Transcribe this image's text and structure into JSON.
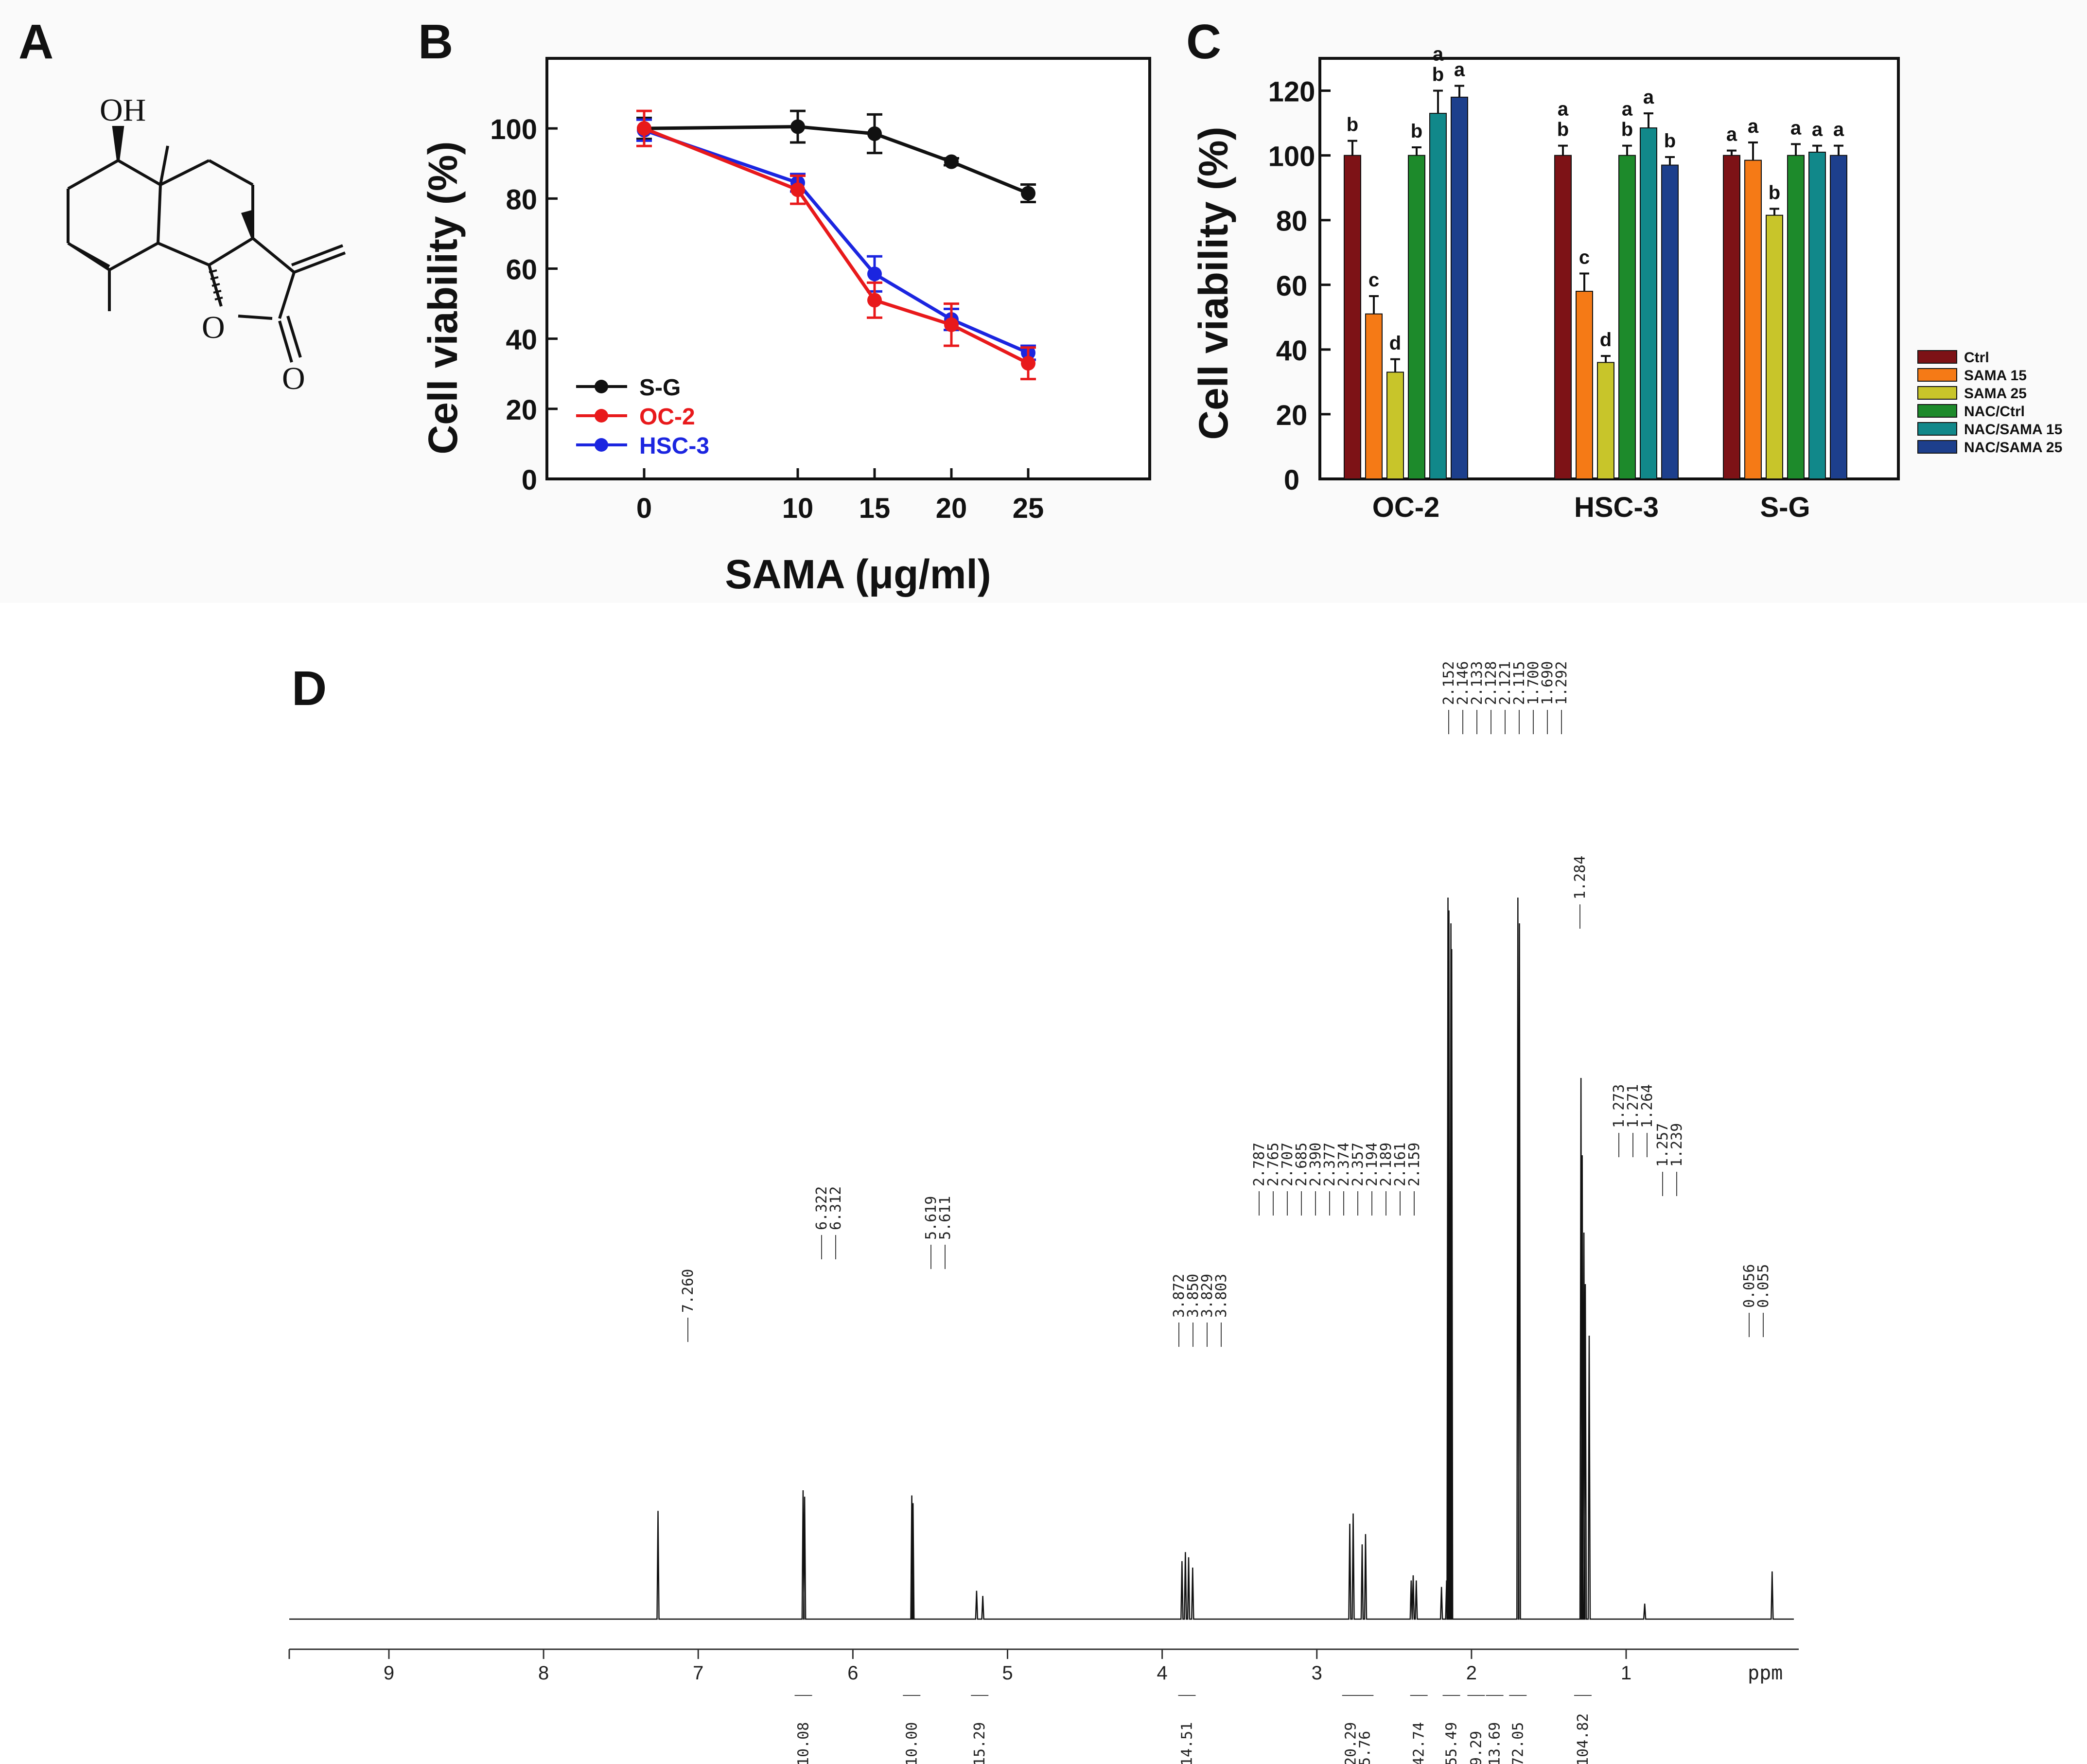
{
  "panels": {
    "A": "A",
    "B": "B",
    "C": "C",
    "D": "D"
  },
  "structure": {
    "oh_label": "OH",
    "ring_o_label": "O",
    "carbonyl_o_label": "O"
  },
  "colors": {
    "sg": "#111111",
    "oc2": "#e8191b",
    "hsc3": "#1b25e0",
    "ctrl": "#7d1216",
    "sama15": "#f57a16",
    "sama25": "#c8c52a",
    "nacctrl": "#1d8a2b",
    "nacsama15": "#11888a",
    "nacsama25": "#1d3f8c"
  },
  "chart_data": [
    {
      "panel": "B",
      "type": "line",
      "xlabel": "SAMA (μg/ml)",
      "ylabel": "Cell viability (%)",
      "x": [
        0,
        10,
        15,
        20,
        25
      ],
      "xticks": [
        "0",
        "10",
        "15",
        "20",
        "25"
      ],
      "yticks": [
        "0",
        "20",
        "40",
        "60",
        "80",
        "100"
      ],
      "ylim": [
        0,
        120
      ],
      "legend_position": "bottom-left",
      "series": [
        {
          "name": "S-G",
          "values": [
            100,
            100.5,
            98.5,
            90.5,
            81.5
          ],
          "errors": [
            3,
            4.5,
            5.5,
            1,
            2.5
          ]
        },
        {
          "name": "OC-2",
          "values": [
            100,
            82.5,
            51,
            44,
            33
          ],
          "errors": [
            5,
            4,
            5,
            6,
            4.5
          ]
        },
        {
          "name": "HSC-3",
          "values": [
            99.5,
            84.5,
            58.5,
            45.5,
            36
          ],
          "errors": [
            3,
            2.5,
            5,
            3,
            2
          ]
        }
      ]
    },
    {
      "panel": "C",
      "type": "bar",
      "ylabel": "Cell viability (%)",
      "categories": [
        "OC-2",
        "HSC-3",
        "S-G"
      ],
      "yticks": [
        "0",
        "20",
        "40",
        "60",
        "80",
        "100",
        "120"
      ],
      "ylim": [
        0,
        130
      ],
      "legend_position": "right",
      "series": [
        {
          "name": "Ctrl",
          "values": [
            100,
            100,
            100
          ],
          "errors": [
            4.5,
            3,
            1.5
          ],
          "letters": [
            "b",
            "a b",
            "a"
          ]
        },
        {
          "name": "SAMA 15",
          "values": [
            51,
            58,
            98.5
          ],
          "errors": [
            5.5,
            5.5,
            5.5
          ],
          "letters": [
            "c",
            "c",
            "a"
          ]
        },
        {
          "name": "SAMA 25",
          "values": [
            33,
            36,
            81.5
          ],
          "errors": [
            4,
            2,
            2
          ],
          "letters": [
            "d",
            "d",
            "b"
          ]
        },
        {
          "name": "NAC/Ctrl",
          "values": [
            100,
            100,
            100
          ],
          "errors": [
            2.5,
            3,
            3.5
          ],
          "letters": [
            "b",
            "a b",
            "a"
          ]
        },
        {
          "name": "NAC/SAMA 15",
          "values": [
            113,
            108.5,
            101
          ],
          "errors": [
            7,
            4.5,
            2
          ],
          "letters": [
            "a b",
            "a",
            "a"
          ]
        },
        {
          "name": "NAC/SAMA 25",
          "values": [
            118,
            97,
            100
          ],
          "errors": [
            3.5,
            2.5,
            3
          ],
          "letters": [
            "a",
            "b",
            "a"
          ]
        }
      ]
    },
    {
      "panel": "D",
      "type": "line",
      "xlabel": "ppm",
      "xlim": [
        10,
        -0.2
      ],
      "xticks": [
        "9",
        "8",
        "7",
        "6",
        "5",
        "4",
        "3",
        "2",
        "1"
      ],
      "peaks": [
        {
          "ppm": 7.26,
          "height": 0.84
        },
        {
          "ppm": 6.322,
          "height": 1.0
        },
        {
          "ppm": 6.312,
          "height": 0.95
        },
        {
          "ppm": 5.619,
          "height": 0.96
        },
        {
          "ppm": 5.611,
          "height": 0.9
        },
        {
          "ppm": 5.2,
          "height": 0.22
        },
        {
          "ppm": 5.16,
          "height": 0.18
        },
        {
          "ppm": 3.872,
          "height": 0.45
        },
        {
          "ppm": 3.85,
          "height": 0.52
        },
        {
          "ppm": 3.829,
          "height": 0.48
        },
        {
          "ppm": 3.803,
          "height": 0.4
        },
        {
          "ppm": 2.787,
          "height": 0.74
        },
        {
          "ppm": 2.765,
          "height": 0.82
        },
        {
          "ppm": 2.707,
          "height": 0.58
        },
        {
          "ppm": 2.685,
          "height": 0.66
        },
        {
          "ppm": 2.39,
          "height": 0.3
        },
        {
          "ppm": 2.377,
          "height": 0.34
        },
        {
          "ppm": 2.357,
          "height": 0.3
        },
        {
          "ppm": 2.194,
          "height": 0.25
        },
        {
          "ppm": 2.161,
          "height": 0.3
        },
        {
          "ppm": 2.152,
          "height": 5.6
        },
        {
          "ppm": 2.146,
          "height": 5.5
        },
        {
          "ppm": 2.133,
          "height": 5.4
        },
        {
          "ppm": 2.128,
          "height": 5.2
        },
        {
          "ppm": 1.7,
          "height": 5.6
        },
        {
          "ppm": 1.69,
          "height": 5.4
        },
        {
          "ppm": 1.292,
          "height": 4.2
        },
        {
          "ppm": 1.284,
          "height": 3.6
        },
        {
          "ppm": 1.273,
          "height": 3.0
        },
        {
          "ppm": 1.264,
          "height": 2.6
        },
        {
          "ppm": 1.239,
          "height": 2.2
        },
        {
          "ppm": 0.88,
          "height": 0.12
        },
        {
          "ppm": 0.056,
          "height": 0.37
        }
      ],
      "peak_label_groups": [
        {
          "labels": [
            "7.260"
          ]
        },
        {
          "labels": [
            "6.322",
            "6.312"
          ]
        },
        {
          "labels": [
            "5.619",
            "5.611"
          ]
        },
        {
          "labels": [
            "3.872",
            "3.850",
            "3.829",
            "3.803"
          ]
        },
        {
          "labels": [
            "2.787",
            "2.765",
            "2.707",
            "2.685",
            "2.390",
            "2.377",
            "2.374",
            "2.357",
            "2.194",
            "2.189",
            "2.161",
            "2.159"
          ]
        },
        {
          "labels": [
            "2.152",
            "2.146",
            "2.133",
            "2.128",
            "2.121",
            "2.115",
            "1.700",
            "1.690",
            "1.292"
          ]
        },
        {
          "labels": [
            "1.284"
          ]
        },
        {
          "labels": [
            "1.273",
            "1.271",
            "1.264"
          ]
        },
        {
          "labels": [
            "1.257",
            "1.239"
          ]
        },
        {
          "labels": [
            "0.056",
            "0.055"
          ]
        }
      ],
      "integrals": [
        {
          "ppm": 6.32,
          "value": "10.08"
        },
        {
          "ppm": 5.62,
          "value": "10.00"
        },
        {
          "ppm": 5.18,
          "value": "15.29"
        },
        {
          "ppm": 3.84,
          "value": "14.51"
        },
        {
          "ppm": 2.78,
          "value": "20.29"
        },
        {
          "ppm": 2.69,
          "value": "5.76"
        },
        {
          "ppm": 2.34,
          "value": "42.74"
        },
        {
          "ppm": 2.13,
          "value": "55.49"
        },
        {
          "ppm": 1.97,
          "value": "9.29"
        },
        {
          "ppm": 1.85,
          "value": "13.69"
        },
        {
          "ppm": 1.7,
          "value": "72.05"
        },
        {
          "ppm": 1.28,
          "value": "104.82"
        }
      ]
    }
  ]
}
